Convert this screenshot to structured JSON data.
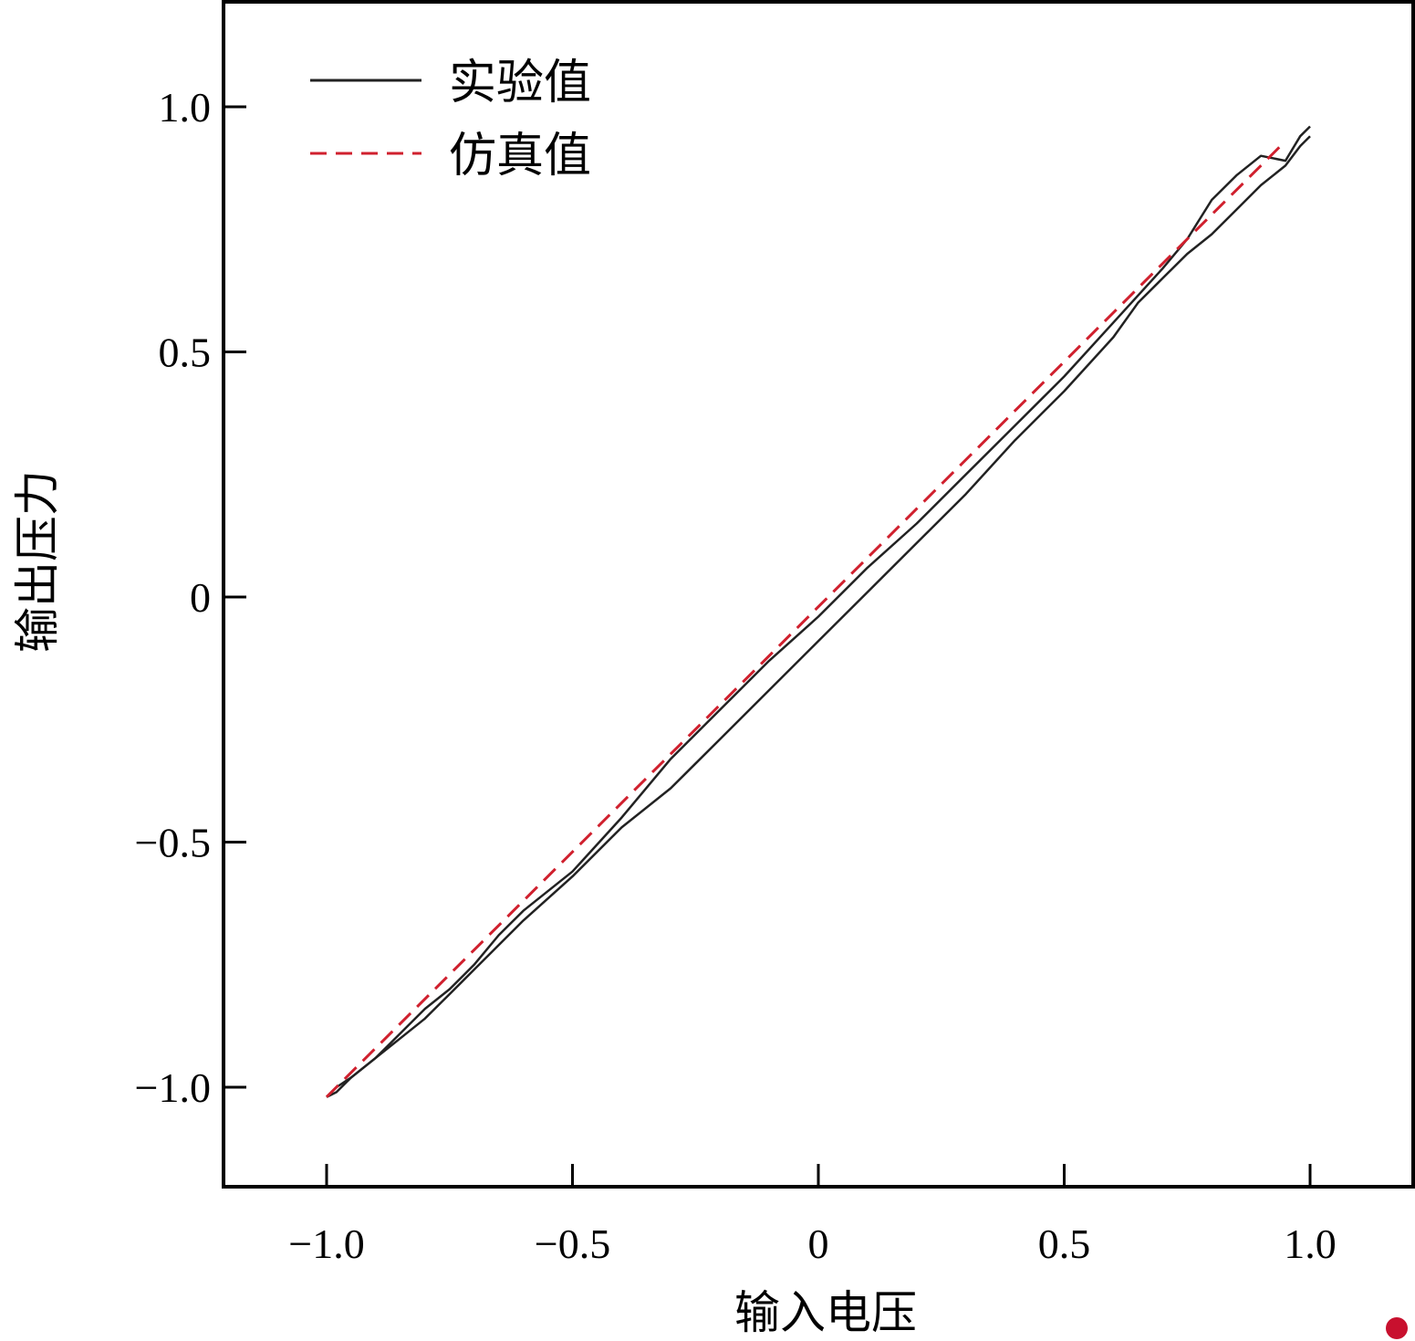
{
  "chart_data": {
    "type": "line",
    "xlabel": "输入电压",
    "ylabel": "输出压力",
    "xlim": [
      -1.2,
      1.2
    ],
    "ylim": [
      -1.2,
      1.2
    ],
    "xticks": [
      -1.0,
      -0.5,
      0,
      0.5,
      1.0
    ],
    "xtick_labels": [
      "−1.0",
      "−0.5",
      "0",
      "0.5",
      "1.0"
    ],
    "yticks": [
      -1.0,
      -0.5,
      0,
      0.5,
      1.0
    ],
    "ytick_labels": [
      "−1.0",
      "−0.5",
      "0",
      "0.5",
      "1.0"
    ],
    "grid": false,
    "legend_position": "top-left",
    "series": [
      {
        "name": "实验值",
        "style": "solid",
        "color": "#222222",
        "branches": [
          {
            "x": [
              -1.0,
              -0.98,
              -0.95,
              -0.9,
              -0.85,
              -0.8,
              -0.75,
              -0.7,
              -0.65,
              -0.6,
              -0.5,
              -0.4,
              -0.3,
              -0.2,
              -0.1,
              0.0,
              0.1,
              0.2,
              0.3,
              0.4,
              0.5,
              0.6,
              0.7,
              0.75,
              0.8,
              0.85,
              0.9,
              0.95,
              0.98,
              1.0
            ],
            "y": [
              -1.02,
              -1.01,
              -0.98,
              -0.94,
              -0.89,
              -0.84,
              -0.8,
              -0.75,
              -0.69,
              -0.64,
              -0.56,
              -0.45,
              -0.33,
              -0.23,
              -0.13,
              -0.04,
              0.06,
              0.15,
              0.25,
              0.35,
              0.45,
              0.56,
              0.67,
              0.73,
              0.81,
              0.86,
              0.9,
              0.89,
              0.94,
              0.96
            ]
          },
          {
            "x": [
              1.0,
              0.98,
              0.95,
              0.9,
              0.85,
              0.8,
              0.75,
              0.7,
              0.65,
              0.6,
              0.5,
              0.4,
              0.3,
              0.2,
              0.1,
              0.0,
              -0.1,
              -0.2,
              -0.3,
              -0.4,
              -0.5,
              -0.6,
              -0.7,
              -0.75,
              -0.8,
              -0.85,
              -0.9,
              -0.95,
              -0.98,
              -1.0
            ],
            "y": [
              0.94,
              0.92,
              0.88,
              0.84,
              0.79,
              0.74,
              0.7,
              0.65,
              0.6,
              0.53,
              0.42,
              0.32,
              0.21,
              0.11,
              0.01,
              -0.09,
              -0.19,
              -0.29,
              -0.39,
              -0.47,
              -0.57,
              -0.66,
              -0.76,
              -0.81,
              -0.86,
              -0.9,
              -0.94,
              -0.98,
              -1.0,
              -1.02
            ]
          }
        ]
      },
      {
        "name": "仿真值",
        "style": "dashed",
        "color": "#d0202e",
        "x": [
          -1.0,
          0.95
        ],
        "y": [
          -1.02,
          0.93
        ]
      }
    ]
  }
}
